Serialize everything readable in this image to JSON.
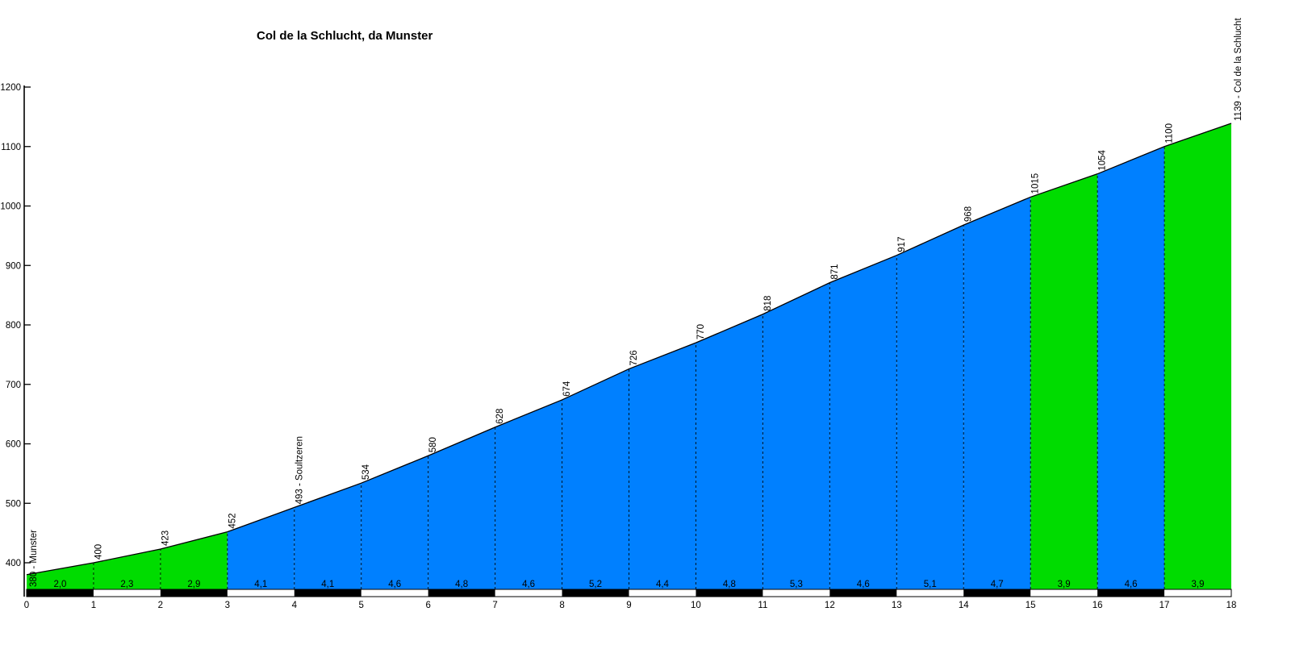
{
  "header": {
    "title": "Col de la Schlucht, da Munster"
  },
  "chart_data": {
    "type": "area",
    "title": "Col de la Schlucht, da Munster",
    "x_unit": "km",
    "y_unit": "m",
    "x": [
      0,
      1,
      2,
      3,
      4,
      5,
      6,
      7,
      8,
      9,
      10,
      11,
      12,
      13,
      14,
      15,
      16,
      17,
      18
    ],
    "elevation_m": [
      380,
      400,
      423,
      452,
      493,
      534,
      580,
      628,
      674,
      726,
      770,
      818,
      871,
      917,
      968,
      1015,
      1054,
      1100,
      1139
    ],
    "point_labels": [
      "380 - Munster",
      "400",
      "423",
      "452",
      "493 - Soultzeren",
      "534",
      "580",
      "628",
      "674",
      "726",
      "770",
      "818",
      "871",
      "917",
      "968",
      "1015",
      "1054",
      "1100",
      "1139 - Col de la Schlucht"
    ],
    "segment_gradients_pct": [
      "2,0",
      "2,3",
      "2,9",
      "4,1",
      "4,1",
      "4,6",
      "4,8",
      "4,6",
      "5,2",
      "4,4",
      "4,8",
      "5,3",
      "4,6",
      "5,1",
      "4,7",
      "3,9",
      "4,6",
      "3,9"
    ],
    "segment_colors": [
      "green",
      "green",
      "green",
      "blue",
      "blue",
      "blue",
      "blue",
      "blue",
      "blue",
      "blue",
      "blue",
      "blue",
      "blue",
      "blue",
      "blue",
      "green",
      "blue",
      "green"
    ],
    "y_ticks": [
      400,
      500,
      600,
      700,
      800,
      900,
      1000,
      1100,
      1200
    ],
    "x_ticks": [
      0,
      1,
      2,
      3,
      4,
      5,
      6,
      7,
      8,
      9,
      10,
      11,
      12,
      13,
      14,
      15,
      16,
      17,
      18
    ],
    "xlim": [
      0,
      18
    ],
    "ylim": [
      355,
      1200
    ],
    "grid": "dashed vertical line at each km from baseline to profile",
    "legend": "none",
    "distance_bar": {
      "pattern": "alternating black/white per km",
      "first_segment_color": "black"
    },
    "colors": {
      "slope_green": "#00DC00",
      "slope_blue": "#0080FF",
      "outline": "#000000",
      "dash_line": "#000000",
      "bar_black": "#000000",
      "bar_white": "#FFFFFF",
      "text": "#000000",
      "background": "#FFFFFF"
    }
  }
}
